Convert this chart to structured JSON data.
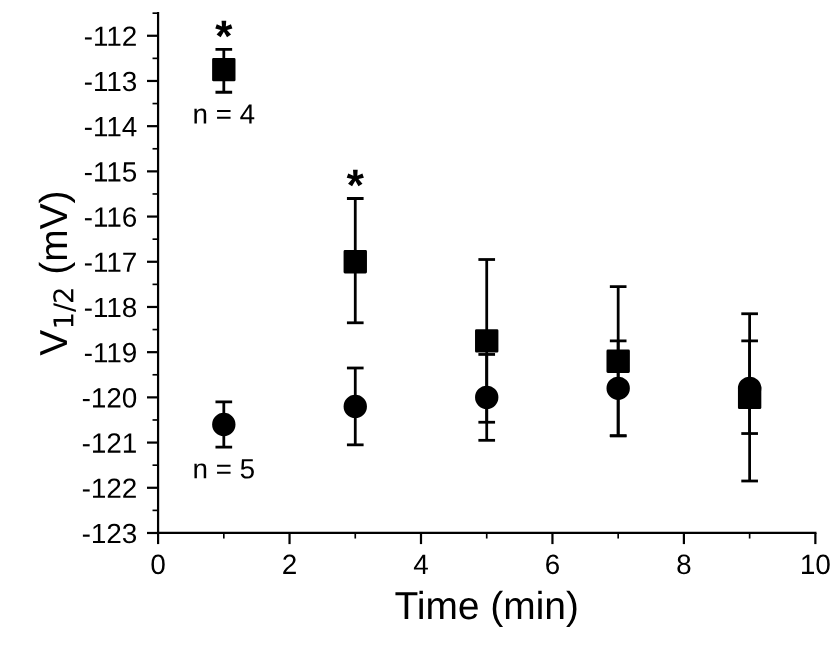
{
  "chart_data": {
    "type": "scatter",
    "xlabel": "Time (min)",
    "ylabel": "V$_{1/2}$ (mV)",
    "xlim": [
      0,
      10
    ],
    "xticks": [
      0,
      2,
      4,
      6,
      8,
      10
    ],
    "ylim": [
      -123,
      -111.5
    ],
    "yticks": [
      -123,
      -122,
      -121,
      -120,
      -119,
      -118,
      -117,
      -116,
      -115,
      -114,
      -113,
      -112
    ],
    "grid": false,
    "legend": false,
    "series": [
      {
        "color": "#000000",
        "marker": "square",
        "x": [
          1,
          3,
          5,
          7,
          9
        ],
        "values": [
          -112.75,
          -117.0,
          -118.75,
          -119.2,
          -120.0
        ],
        "errors": [
          [
            -113.25,
            -112.3
          ],
          [
            -118.35,
            -115.6
          ],
          [
            -120.55,
            -116.95
          ],
          [
            -120.85,
            -117.55
          ],
          [
            -121.85,
            -118.15
          ]
        ]
      },
      {
        "color": "#000000",
        "marker": "circle",
        "x": [
          1,
          3,
          5,
          7,
          9
        ],
        "values": [
          -120.6,
          -120.2,
          -120.0,
          -119.8,
          -119.8
        ],
        "errors": [
          [
            -121.1,
            -120.1
          ],
          [
            -121.05,
            -119.35
          ],
          [
            -120.95,
            -119.05
          ],
          [
            -120.85,
            -118.75
          ],
          [
            -120.8,
            -118.75
          ]
        ]
      }
    ],
    "annotations": [
      "*",
      "*",
      "n = 4",
      "n = 5"
    ]
  }
}
